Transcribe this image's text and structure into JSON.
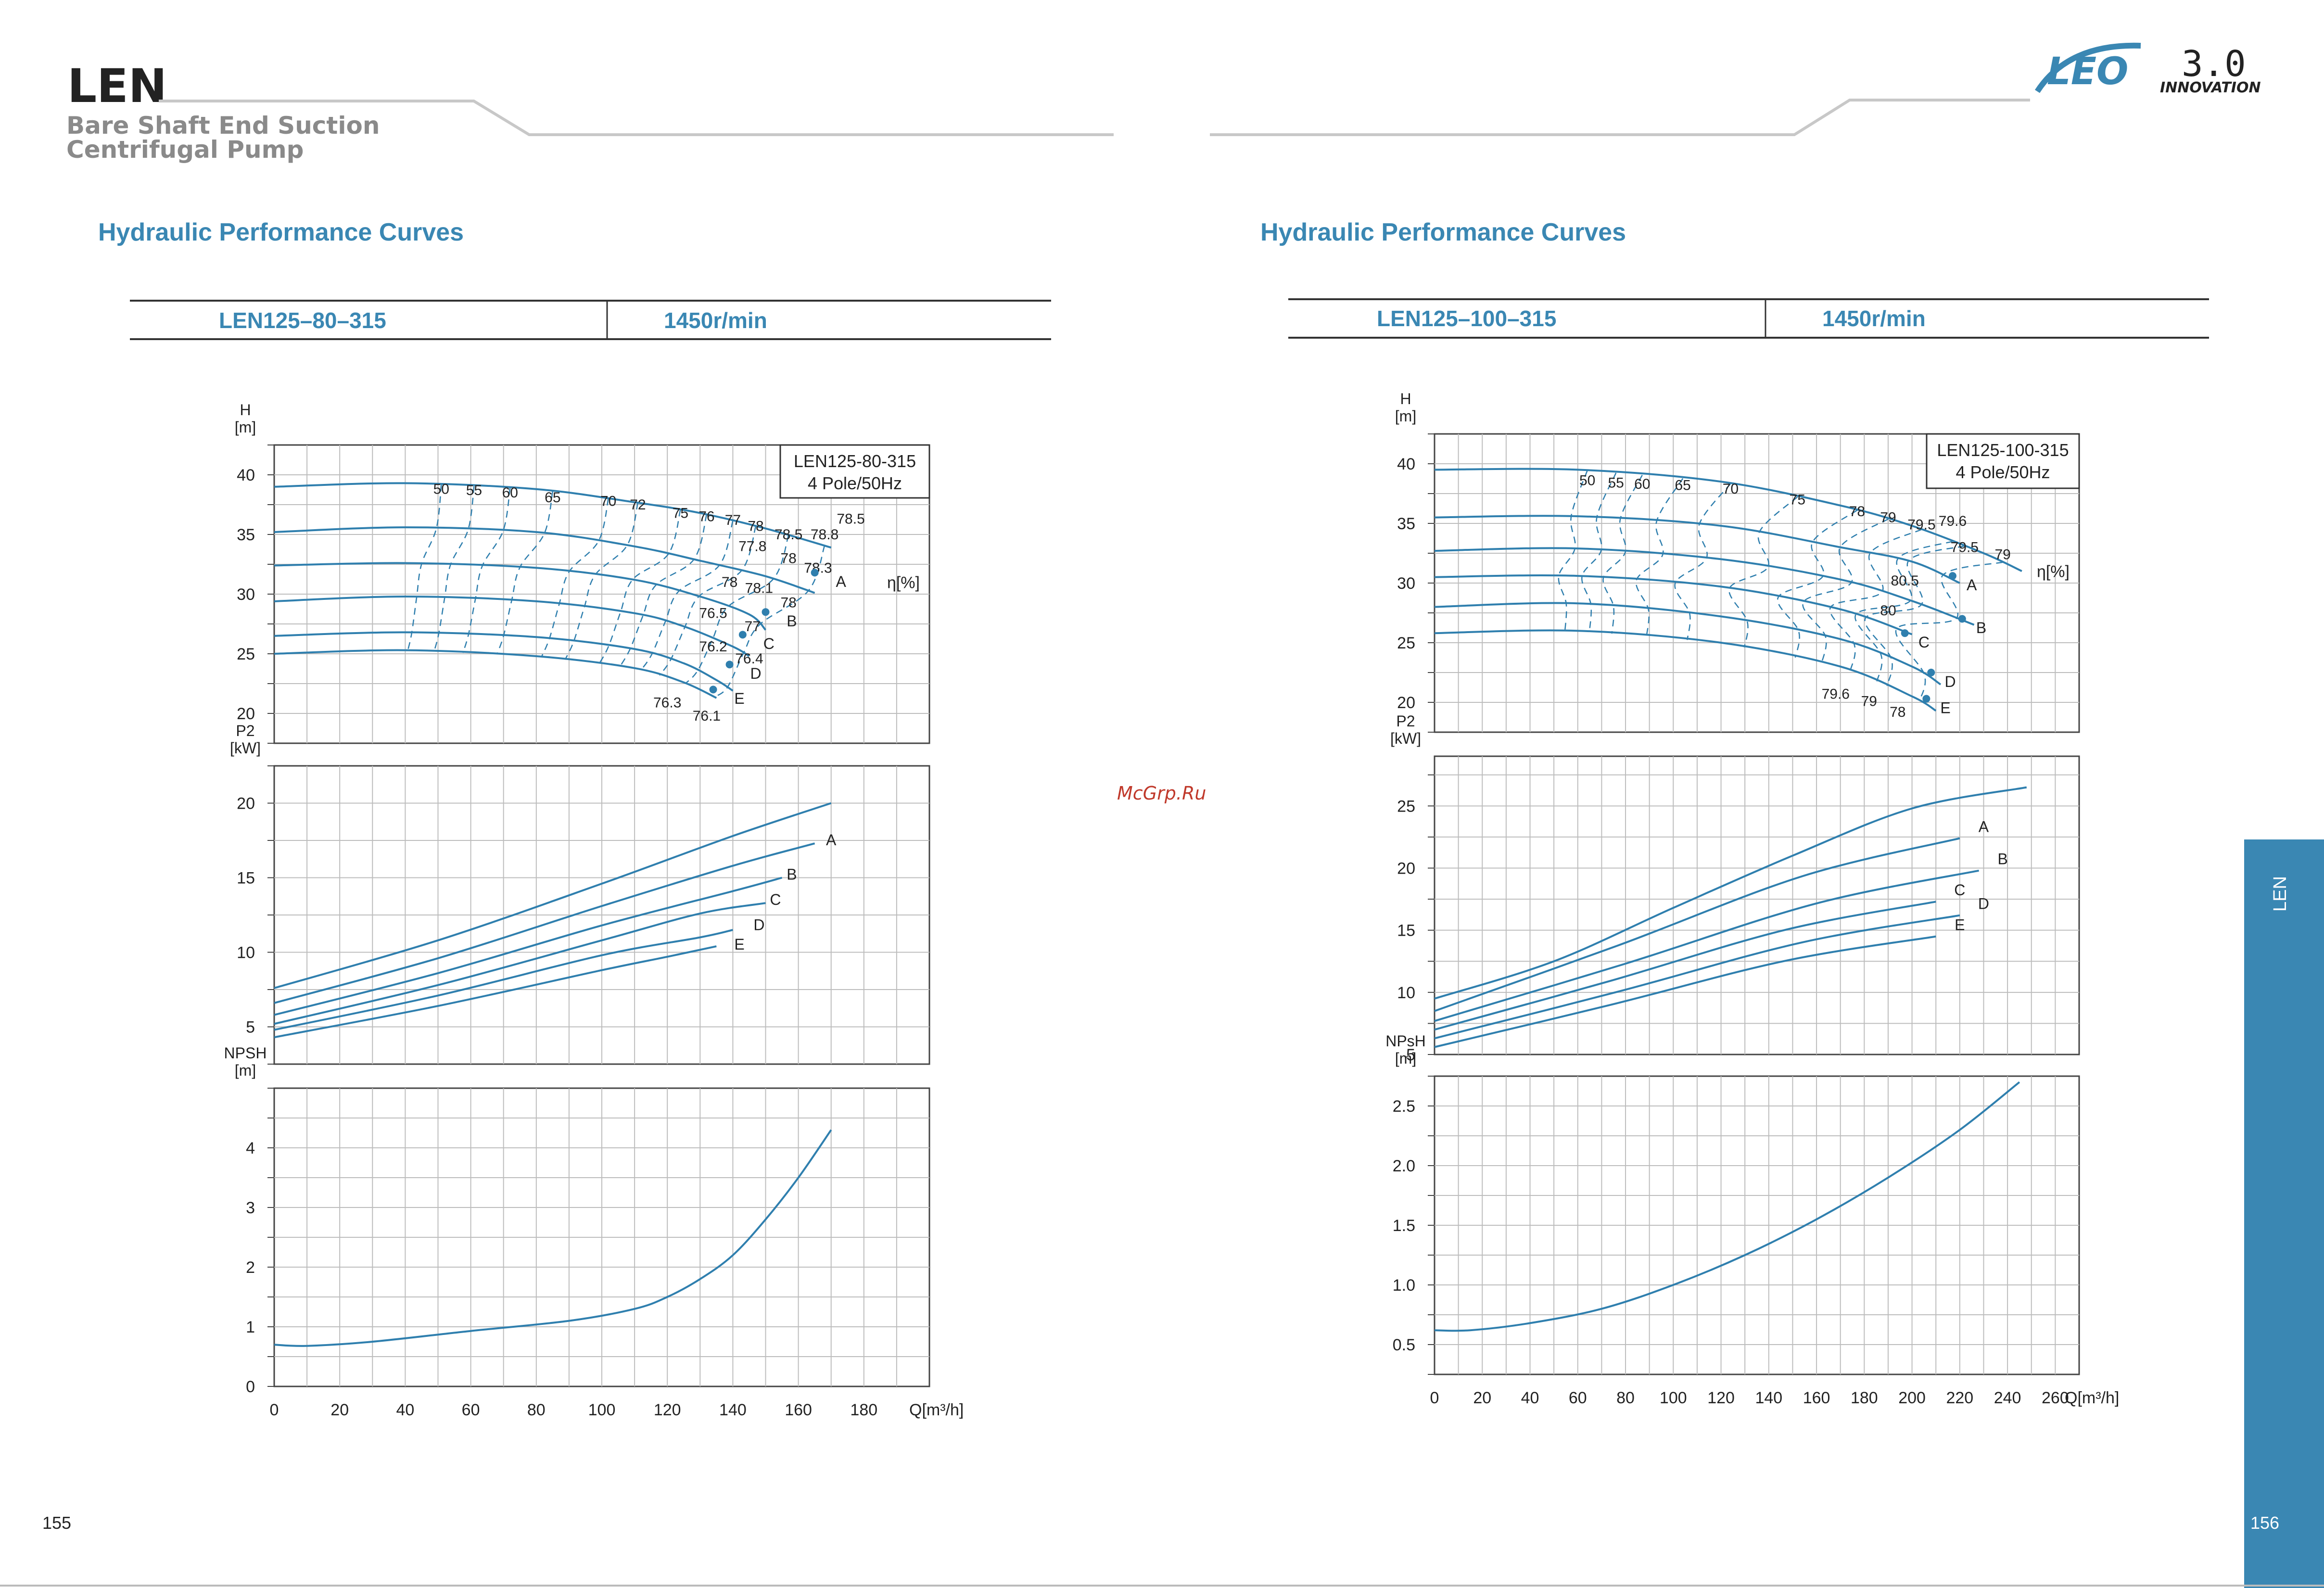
{
  "header": {
    "brand": "LEN",
    "subtitle_line1": "Bare Shaft End Suction",
    "subtitle_line2": "Centrifugal Pump",
    "logo_text": "LEO",
    "logo_version": "3.0",
    "logo_tagline": "INNOVATION"
  },
  "watermark": "McGrp.Ru",
  "side_tab": "LEN",
  "page_numbers": {
    "left": "155",
    "right": "156"
  },
  "colors": {
    "accent": "#3a87b3",
    "curve": "#2f7fae",
    "tab": "#3a87b3"
  },
  "left": {
    "section_title": "Hydraulic Performance Curves",
    "table": {
      "model": "LEN125–80–315",
      "speed": "1450r/min"
    }
  },
  "right": {
    "section_title": "Hydraulic Performance Curves",
    "table": {
      "model": "LEN125–100–315",
      "speed": "1450r/min"
    }
  },
  "chart_data": [
    {
      "id": "left",
      "type": "line",
      "legend_box": [
        "LEN125-80-315",
        "4 Pole/50Hz"
      ],
      "x_label": "Q[m³/h]",
      "x_ticks": [
        0,
        20,
        40,
        60,
        80,
        100,
        120,
        140,
        160,
        180
      ],
      "x_range": [
        0,
        200
      ],
      "head": {
        "ylabel": [
          "H",
          "[m]"
        ],
        "yticks": [
          20,
          25,
          30,
          35,
          40
        ],
        "yrange": [
          17.5,
          42.5
        ],
        "series": [
          {
            "name": "A",
            "points": [
              [
                0,
                39
              ],
              [
                40,
                39.3
              ],
              [
                80,
                38.8
              ],
              [
                110,
                37.7
              ],
              [
                130,
                36.8
              ],
              [
                150,
                35.5
              ],
              [
                170,
                33.9
              ]
            ]
          },
          {
            "name": "B",
            "points": [
              [
                0,
                35.2
              ],
              [
                40,
                35.6
              ],
              [
                80,
                35.2
              ],
              [
                110,
                34
              ],
              [
                130,
                32.8
              ],
              [
                150,
                31.5
              ],
              [
                165,
                30.1
              ]
            ]
          },
          {
            "name": "C",
            "points": [
              [
                0,
                32.4
              ],
              [
                40,
                32.6
              ],
              [
                80,
                32.2
              ],
              [
                110,
                31.2
              ],
              [
                130,
                29.8
              ],
              [
                145,
                28.3
              ],
              [
                150,
                27
              ]
            ]
          },
          {
            "name": "D",
            "points": [
              [
                0,
                29.4
              ],
              [
                40,
                29.8
              ],
              [
                80,
                29.4
              ],
              [
                110,
                28.4
              ],
              [
                125,
                27.3
              ],
              [
                140,
                25.6
              ],
              [
                145,
                24.8
              ]
            ]
          },
          {
            "name": "E",
            "points": [
              [
                0,
                26.5
              ],
              [
                40,
                26.8
              ],
              [
                80,
                26.4
              ],
              [
                110,
                25.4
              ],
              [
                125,
                24.2
              ],
              [
                135,
                22.8
              ],
              [
                140,
                21.9
              ]
            ]
          },
          {
            "name": "",
            "points": [
              [
                0,
                25
              ],
              [
                40,
                25.3
              ],
              [
                80,
                24.8
              ],
              [
                110,
                23.8
              ],
              [
                125,
                22.6
              ],
              [
                135,
                21.3
              ]
            ]
          }
        ],
        "eta_levels": [
          50,
          55,
          60,
          65,
          70,
          72,
          75,
          76,
          77,
          78,
          78.5,
          78.8
        ],
        "eta_label": "η[%]",
        "iso_labels": [
          {
            "t": "50",
            "q": 51,
            "h": 38.4
          },
          {
            "t": "55",
            "q": 61,
            "h": 38.3
          },
          {
            "t": "60",
            "q": 72,
            "h": 38.1
          },
          {
            "t": "65",
            "q": 85,
            "h": 37.7
          },
          {
            "t": "70",
            "q": 102,
            "h": 37.4
          },
          {
            "t": "72",
            "q": 111,
            "h": 37.1
          },
          {
            "t": "75",
            "q": 124,
            "h": 36.4
          },
          {
            "t": "76",
            "q": 132,
            "h": 36.1
          },
          {
            "t": "77",
            "q": 140,
            "h": 35.8
          },
          {
            "t": "78",
            "q": 147,
            "h": 35.3
          },
          {
            "t": "78.5",
            "q": 157,
            "h": 34.6
          },
          {
            "t": "78.8",
            "q": 168,
            "h": 34.6
          },
          {
            "t": "78.5",
            "q": 176,
            "h": 35.9
          },
          {
            "t": "78.3",
            "q": 166,
            "h": 31.8
          },
          {
            "t": "77.8",
            "q": 146,
            "h": 33.6
          },
          {
            "t": "78",
            "q": 157,
            "h": 32.6
          },
          {
            "t": "78",
            "q": 139,
            "h": 30.6
          },
          {
            "t": "78.1",
            "q": 148,
            "h": 30.1
          },
          {
            "t": "78",
            "q": 157,
            "h": 28.9
          },
          {
            "t": "76.5",
            "q": 134,
            "h": 28
          },
          {
            "t": "77",
            "q": 146,
            "h": 26.9
          },
          {
            "t": "76.2",
            "q": 134,
            "h": 25.2
          },
          {
            "t": "76.4",
            "q": 145,
            "h": 24.2
          },
          {
            "t": "76.3",
            "q": 120,
            "h": 20.5
          },
          {
            "t": "76.1",
            "q": 132,
            "h": 19.4
          }
        ],
        "end_labels": [
          {
            "t": "A",
            "q": 173,
            "h": 30.6
          },
          {
            "t": "B",
            "q": 158,
            "h": 27.3
          },
          {
            "t": "C",
            "q": 151,
            "h": 25.4
          },
          {
            "t": "D",
            "q": 147,
            "h": 22.9
          },
          {
            "t": "E",
            "q": 142,
            "h": 20.8
          }
        ]
      },
      "power": {
        "ylabel": [
          "P2",
          "[kW]"
        ],
        "yticks": [
          5,
          10,
          15,
          20
        ],
        "yrange": [
          2.5,
          22.5
        ],
        "series": [
          {
            "name": "",
            "points": [
              [
                0,
                7.6
              ],
              [
                50,
                10.8
              ],
              [
                100,
                14.6
              ],
              [
                140,
                17.8
              ],
              [
                170,
                20
              ]
            ]
          },
          {
            "name": "A",
            "points": [
              [
                0,
                6.6
              ],
              [
                50,
                9.6
              ],
              [
                100,
                13.1
              ],
              [
                140,
                15.8
              ],
              [
                165,
                17.3
              ]
            ]
          },
          {
            "name": "B",
            "points": [
              [
                0,
                5.8
              ],
              [
                50,
                8.6
              ],
              [
                100,
                11.8
              ],
              [
                140,
                14.1
              ],
              [
                155,
                15
              ]
            ]
          },
          {
            "name": "C",
            "points": [
              [
                0,
                5.2
              ],
              [
                50,
                7.8
              ],
              [
                100,
                10.8
              ],
              [
                130,
                12.6
              ],
              [
                150,
                13.3
              ]
            ]
          },
          {
            "name": "D",
            "points": [
              [
                0,
                4.8
              ],
              [
                50,
                7.1
              ],
              [
                100,
                9.8
              ],
              [
                130,
                11
              ],
              [
                140,
                11.5
              ]
            ]
          },
          {
            "name": "E",
            "points": [
              [
                0,
                4.3
              ],
              [
                50,
                6.4
              ],
              [
                100,
                8.8
              ],
              [
                120,
                9.7
              ],
              [
                135,
                10.4
              ]
            ]
          }
        ],
        "end_labels": [
          {
            "t": "A",
            "q": 170,
            "p": 17.5
          },
          {
            "t": "B",
            "q": 158,
            "p": 15.2
          },
          {
            "t": "C",
            "q": 153,
            "p": 13.5
          },
          {
            "t": "D",
            "q": 148,
            "p": 11.8
          },
          {
            "t": "E",
            "q": 142,
            "p": 10.5
          }
        ]
      },
      "npsh": {
        "ylabel": [
          "NPSH",
          "[m]"
        ],
        "yticks": [
          0,
          1,
          2,
          3,
          4
        ],
        "yrange": [
          0,
          5
        ],
        "series": [
          {
            "name": "",
            "points": [
              [
                0,
                0.7
              ],
              [
                10,
                0.68
              ],
              [
                30,
                0.75
              ],
              [
                60,
                0.93
              ],
              [
                90,
                1.1
              ],
              [
                110,
                1.3
              ],
              [
                120,
                1.5
              ],
              [
                130,
                1.8
              ],
              [
                140,
                2.2
              ],
              [
                150,
                2.8
              ],
              [
                160,
                3.5
              ],
              [
                170,
                4.3
              ]
            ]
          }
        ]
      }
    },
    {
      "id": "right",
      "type": "line",
      "legend_box": [
        "LEN125-100-315",
        "4 Pole/50Hz"
      ],
      "x_label": "Q[m³/h]",
      "x_ticks": [
        0,
        20,
        40,
        60,
        80,
        100,
        120,
        140,
        160,
        180,
        200,
        220,
        240,
        260
      ],
      "x_range": [
        0,
        270
      ],
      "head": {
        "ylabel": [
          "H",
          "[m]"
        ],
        "yticks": [
          20,
          25,
          30,
          35,
          40
        ],
        "yrange": [
          17.5,
          42.5
        ],
        "series": [
          {
            "name": "",
            "points": [
              [
                0,
                39.5
              ],
              [
                60,
                39.5
              ],
              [
                120,
                38.5
              ],
              [
                170,
                36.5
              ],
              [
                200,
                34.8
              ],
              [
                230,
                32.5
              ],
              [
                246,
                31
              ]
            ]
          },
          {
            "name": "A",
            "points": [
              [
                0,
                35.5
              ],
              [
                60,
                35.6
              ],
              [
                120,
                34.8
              ],
              [
                170,
                33
              ],
              [
                200,
                31.8
              ],
              [
                220,
                30
              ]
            ]
          },
          {
            "name": "B",
            "points": [
              [
                0,
                32.7
              ],
              [
                60,
                32.9
              ],
              [
                120,
                32
              ],
              [
                170,
                30.3
              ],
              [
                200,
                28.5
              ],
              [
                226,
                26.5
              ]
            ]
          },
          {
            "name": "C",
            "points": [
              [
                0,
                30.5
              ],
              [
                60,
                30.6
              ],
              [
                120,
                29.7
              ],
              [
                170,
                27.8
              ],
              [
                200,
                25.7
              ]
            ]
          },
          {
            "name": "D",
            "points": [
              [
                0,
                28
              ],
              [
                60,
                28.3
              ],
              [
                120,
                27.2
              ],
              [
                170,
                25.3
              ],
              [
                200,
                23
              ],
              [
                212,
                21.5
              ]
            ]
          },
          {
            "name": "E",
            "points": [
              [
                0,
                25.8
              ],
              [
                60,
                26
              ],
              [
                120,
                25
              ],
              [
                170,
                23
              ],
              [
                200,
                20.5
              ],
              [
                210,
                19.3
              ]
            ]
          }
        ],
        "eta_levels": [
          50,
          55,
          60,
          65,
          70,
          75,
          78,
          79,
          79.5,
          79.6,
          80,
          80.5
        ],
        "eta_label": "η[%]",
        "iso_labels": [
          {
            "t": "50",
            "q": 64,
            "h": 38.2
          },
          {
            "t": "55",
            "q": 76,
            "h": 38
          },
          {
            "t": "60",
            "q": 87,
            "h": 37.9
          },
          {
            "t": "65",
            "q": 104,
            "h": 37.8
          },
          {
            "t": "70",
            "q": 124,
            "h": 37.5
          },
          {
            "t": "75",
            "q": 152,
            "h": 36.6
          },
          {
            "t": "78",
            "q": 177,
            "h": 35.6
          },
          {
            "t": "79",
            "q": 190,
            "h": 35.1
          },
          {
            "t": "79.5",
            "q": 204,
            "h": 34.5
          },
          {
            "t": "79.6",
            "q": 217,
            "h": 34.8
          },
          {
            "t": "79.5",
            "q": 222,
            "h": 32.6
          },
          {
            "t": "79",
            "q": 238,
            "h": 32
          },
          {
            "t": "80.5",
            "q": 197,
            "h": 29.8
          },
          {
            "t": "80",
            "q": 190,
            "h": 27.3
          },
          {
            "t": "79.6",
            "q": 168,
            "h": 20.3
          },
          {
            "t": "79",
            "q": 182,
            "h": 19.7
          },
          {
            "t": "78",
            "q": 194,
            "h": 18.8
          }
        ],
        "end_labels": [
          {
            "t": "A",
            "q": 225,
            "h": 29.4
          },
          {
            "t": "B",
            "q": 229,
            "h": 25.8
          },
          {
            "t": "C",
            "q": 205,
            "h": 24.6
          },
          {
            "t": "D",
            "q": 216,
            "h": 21.3
          },
          {
            "t": "E",
            "q": 214,
            "h": 19.1
          }
        ]
      },
      "power": {
        "ylabel": [
          "P2",
          "[kW]"
        ],
        "yticks": [
          5,
          10,
          15,
          20,
          25
        ],
        "yrange": [
          5,
          29
        ]
      },
      "npsh": {
        "ylabel": [
          "NPsH",
          "[m]"
        ],
        "yticks": [
          0.5,
          1.0,
          1.5,
          2.0,
          2.5
        ],
        "yrange": [
          0.25,
          2.75
        ]
      }
    }
  ]
}
